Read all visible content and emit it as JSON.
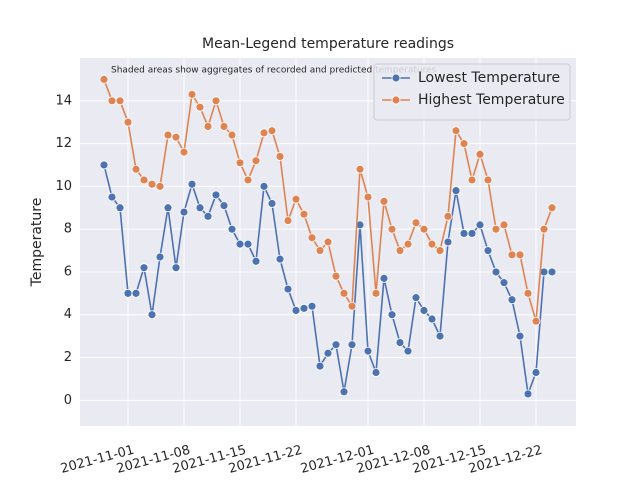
{
  "chart_data": {
    "type": "line",
    "title": "Mean-Legend temperature readings",
    "annotation": "Shaded areas show aggregates of recorded and predicted temperatures",
    "ylabel": "Temperature",
    "x": [
      "2021-10-29",
      "2021-10-30",
      "2021-10-31",
      "2021-11-01",
      "2021-11-02",
      "2021-11-03",
      "2021-11-04",
      "2021-11-05",
      "2021-11-06",
      "2021-11-07",
      "2021-11-08",
      "2021-11-09",
      "2021-11-10",
      "2021-11-11",
      "2021-11-12",
      "2021-11-13",
      "2021-11-14",
      "2021-11-15",
      "2021-11-16",
      "2021-11-17",
      "2021-11-18",
      "2021-11-19",
      "2021-11-20",
      "2021-11-21",
      "2021-11-22",
      "2021-11-23",
      "2021-11-24",
      "2021-11-25",
      "2021-11-26",
      "2021-11-27",
      "2021-11-28",
      "2021-11-29",
      "2021-11-30",
      "2021-12-01",
      "2021-12-02",
      "2021-12-03",
      "2021-12-04",
      "2021-12-05",
      "2021-12-06",
      "2021-12-07",
      "2021-12-08",
      "2021-12-09",
      "2021-12-10",
      "2021-12-11",
      "2021-12-12",
      "2021-12-13",
      "2021-12-14",
      "2021-12-15",
      "2021-12-16",
      "2021-12-17",
      "2021-12-18",
      "2021-12-19",
      "2021-12-20",
      "2021-12-21",
      "2021-12-22",
      "2021-12-23",
      "2021-12-24"
    ],
    "series": [
      {
        "name": "Lowest Temperature",
        "color": "#4c72b0",
        "values": [
          11.0,
          9.5,
          9.0,
          5.0,
          5.0,
          6.2,
          4.0,
          6.7,
          9.0,
          6.2,
          8.8,
          10.1,
          9.0,
          8.6,
          9.6,
          9.1,
          8.0,
          7.3,
          7.3,
          6.5,
          10.0,
          9.2,
          6.6,
          5.2,
          4.2,
          4.3,
          4.4,
          1.6,
          2.2,
          2.6,
          0.4,
          2.6,
          8.2,
          2.3,
          1.3,
          5.7,
          4.0,
          2.7,
          2.3,
          4.8,
          4.2,
          3.8,
          3.0,
          7.4,
          9.8,
          7.8,
          7.8,
          8.2,
          7.0,
          6.0,
          5.5,
          4.7,
          3.0,
          0.3,
          1.3,
          6.0,
          6.0
        ]
      },
      {
        "name": "Highest Temperature",
        "color": "#dd8452",
        "values": [
          15.0,
          14.0,
          14.0,
          13.0,
          10.8,
          10.3,
          10.1,
          10.0,
          12.4,
          12.3,
          11.6,
          14.3,
          13.7,
          12.8,
          14.0,
          12.8,
          12.4,
          11.1,
          10.3,
          11.2,
          12.5,
          12.6,
          11.4,
          8.4,
          9.4,
          8.7,
          7.6,
          7.0,
          7.4,
          5.8,
          5.0,
          4.4,
          10.8,
          9.5,
          5.0,
          9.3,
          8.0,
          7.0,
          7.3,
          8.3,
          8.0,
          7.3,
          7.0,
          8.6,
          12.6,
          12.0,
          10.3,
          11.5,
          10.3,
          8.0,
          8.2,
          6.8,
          6.8,
          5.0,
          3.7,
          8.0,
          9.0
        ]
      }
    ],
    "xlim": [
      "2021-10-26",
      "2021-12-27"
    ],
    "xticks": [
      "2021-11-01",
      "2021-11-08",
      "2021-11-15",
      "2021-11-22",
      "2021-12-01",
      "2021-12-08",
      "2021-12-15",
      "2021-12-22"
    ],
    "ylim": [
      -1.2,
      16.0
    ],
    "yticks": [
      0,
      2,
      4,
      6,
      8,
      10,
      12,
      14
    ],
    "grid": true,
    "legend": "upper right"
  }
}
